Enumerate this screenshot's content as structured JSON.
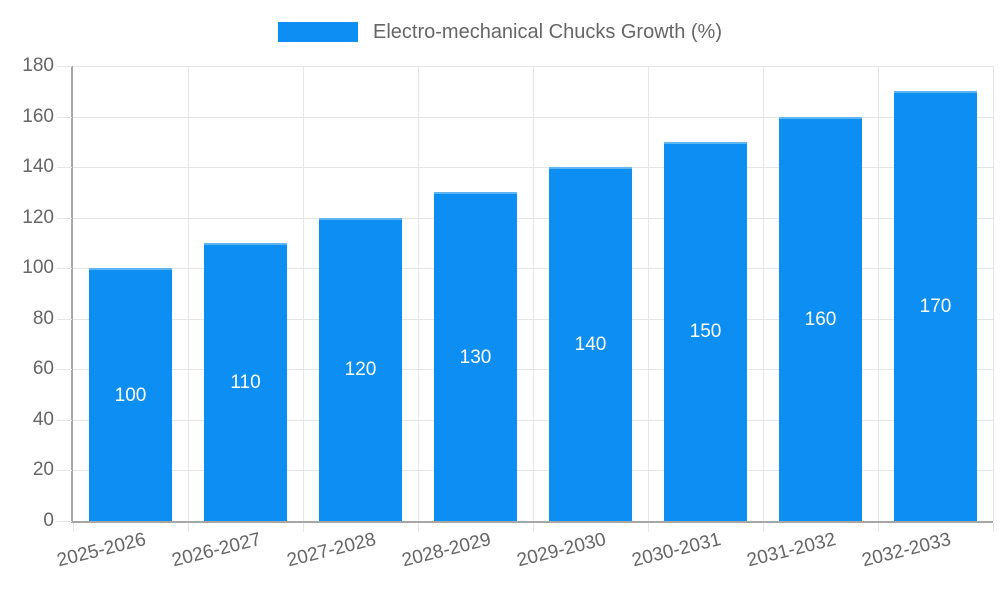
{
  "legend": {
    "position": "top",
    "items": [
      {
        "label": "Electro-mechanical Chucks Growth (%)"
      }
    ]
  },
  "chart_data": {
    "type": "bar",
    "title": "Electro-mechanical Chucks Growth (%)",
    "categories": [
      "2025-2026",
      "2026-2027",
      "2027-2028",
      "2028-2029",
      "2029-2030",
      "2030-2031",
      "2031-2032",
      "2032-2033"
    ],
    "values": [
      100,
      110,
      120,
      130,
      140,
      150,
      160,
      170
    ],
    "xlabel": "",
    "ylabel": "",
    "ylim": [
      0,
      180
    ],
    "yticks": [
      0,
      20,
      40,
      60,
      80,
      100,
      120,
      140,
      160,
      180
    ],
    "grid": "on",
    "legend_position": "top",
    "bar_value_labels_visible": true,
    "colors": {
      "bar": "#0d8ef2",
      "bar_border": "#5fb4f4",
      "grid": "#e6e6e6",
      "axis": "#a6a6a6",
      "tick_text": "#666666",
      "bar_label_text": "#ffffff"
    }
  }
}
